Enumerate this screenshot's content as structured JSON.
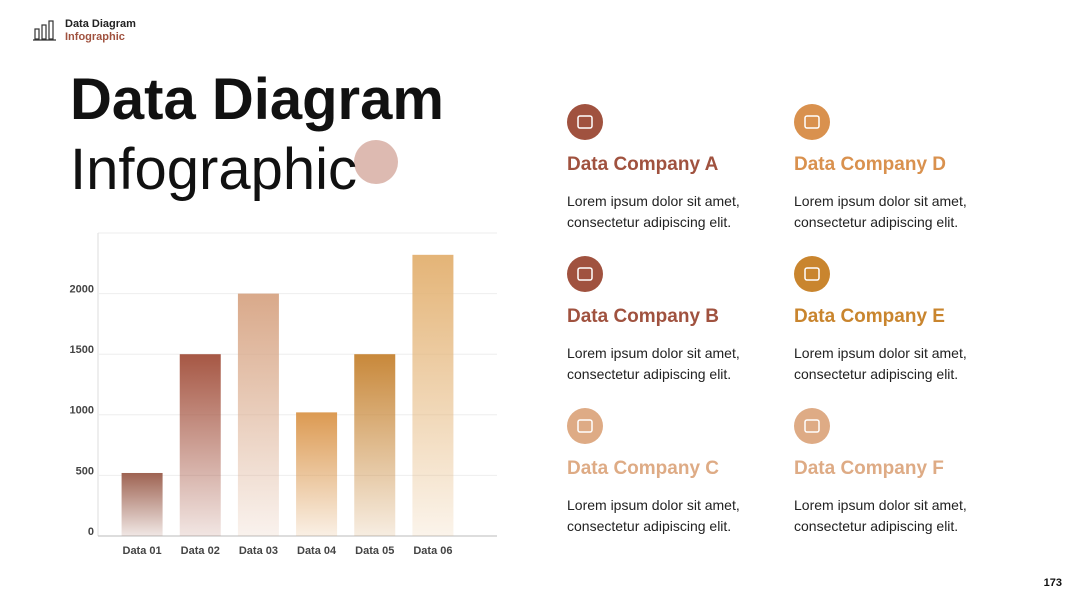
{
  "header": {
    "line1": "Data Diagram",
    "line2": "Infographic"
  },
  "title": {
    "line1": "Data Diagram",
    "line2": "Infographic"
  },
  "chart_data": {
    "type": "bar",
    "categories": [
      "Data 01",
      "Data 02",
      "Data 03",
      "Data 04",
      "Data 05",
      "Data 06"
    ],
    "values": [
      520,
      1500,
      2000,
      1020,
      1500,
      2320
    ],
    "colors": [
      "#9e6352",
      "#a65744",
      "#d9a98a",
      "#dc9a52",
      "#c8883a",
      "#e4b477"
    ],
    "ylim": [
      0,
      2500
    ],
    "yticks": [
      0,
      500,
      1000,
      1500,
      2000
    ],
    "grid": true
  },
  "companies": [
    {
      "name": "Data Company A",
      "color": "#a0523f",
      "desc": [
        "Lorem ipsum dolor sit amet,",
        "consectetur adipiscing elit."
      ]
    },
    {
      "name": "Data Company B",
      "color": "#a0523f",
      "desc": [
        "Lorem ipsum dolor sit amet,",
        "consectetur adipiscing elit."
      ]
    },
    {
      "name": "Data Company C",
      "color": "#deab85",
      "desc": [
        "Lorem ipsum dolor sit amet,",
        "consectetur adipiscing elit."
      ]
    },
    {
      "name": "Data Company D",
      "color": "#d9914e",
      "desc": [
        "Lorem ipsum dolor sit amet,",
        "consectetur adipiscing elit."
      ]
    },
    {
      "name": "Data Company E",
      "color": "#c9852e",
      "desc": [
        "Lorem ipsum dolor sit amet,",
        "consectetur adipiscing elit."
      ]
    },
    {
      "name": "Data Company F",
      "color": "#deab85",
      "desc": [
        "Lorem ipsum dolor sit amet,",
        "consectetur adipiscing elit."
      ]
    }
  ],
  "page_number": "173"
}
